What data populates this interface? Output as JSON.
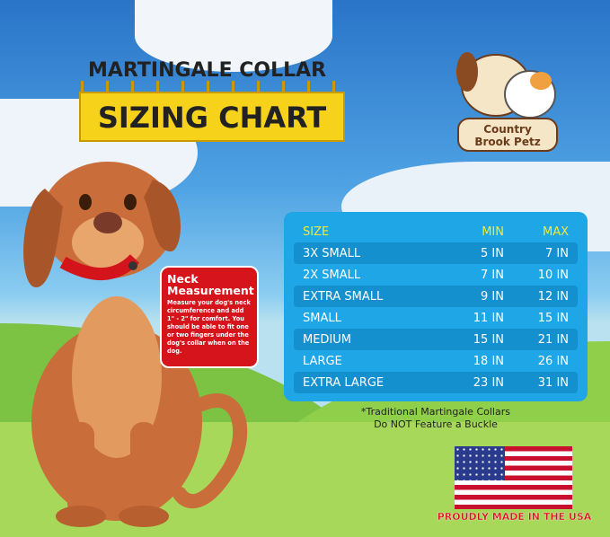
{
  "title": {
    "line1": "MARTINGALE COLLAR",
    "line2": "SIZING CHART"
  },
  "logo": {
    "text": "Country Brook Petz"
  },
  "neck": {
    "heading": "Neck Measurement",
    "body": "Measure your dog's neck circumference and add 1\" - 2\" for comfort. You should be able to fit one or two fingers under the dog's collar when on the dog."
  },
  "table": {
    "headers": [
      "SIZE",
      "MIN",
      "MAX"
    ],
    "rows": [
      [
        "3X SMALL",
        "5 IN",
        "7 IN"
      ],
      [
        "2X SMALL",
        "7 IN",
        "10 IN"
      ],
      [
        "EXTRA SMALL",
        "9 IN",
        "12 IN"
      ],
      [
        "SMALL",
        "11 IN",
        "15 IN"
      ],
      [
        "MEDIUM",
        "15 IN",
        "21 IN"
      ],
      [
        "LARGE",
        "18 IN",
        "26 IN"
      ],
      [
        "EXTRA LARGE",
        "23 IN",
        "31 IN"
      ]
    ]
  },
  "note": {
    "line1": "*Traditional Martingale Collars",
    "line2": "Do NOT Feature a Buckle"
  },
  "made": "PROUDLY MADE IN THE USA",
  "colors": {
    "table": "#1ea6e6",
    "header": "#f2e93a",
    "ruler": "#f7d21a",
    "neck": "#d5141b",
    "dog": "#c96e3a"
  }
}
